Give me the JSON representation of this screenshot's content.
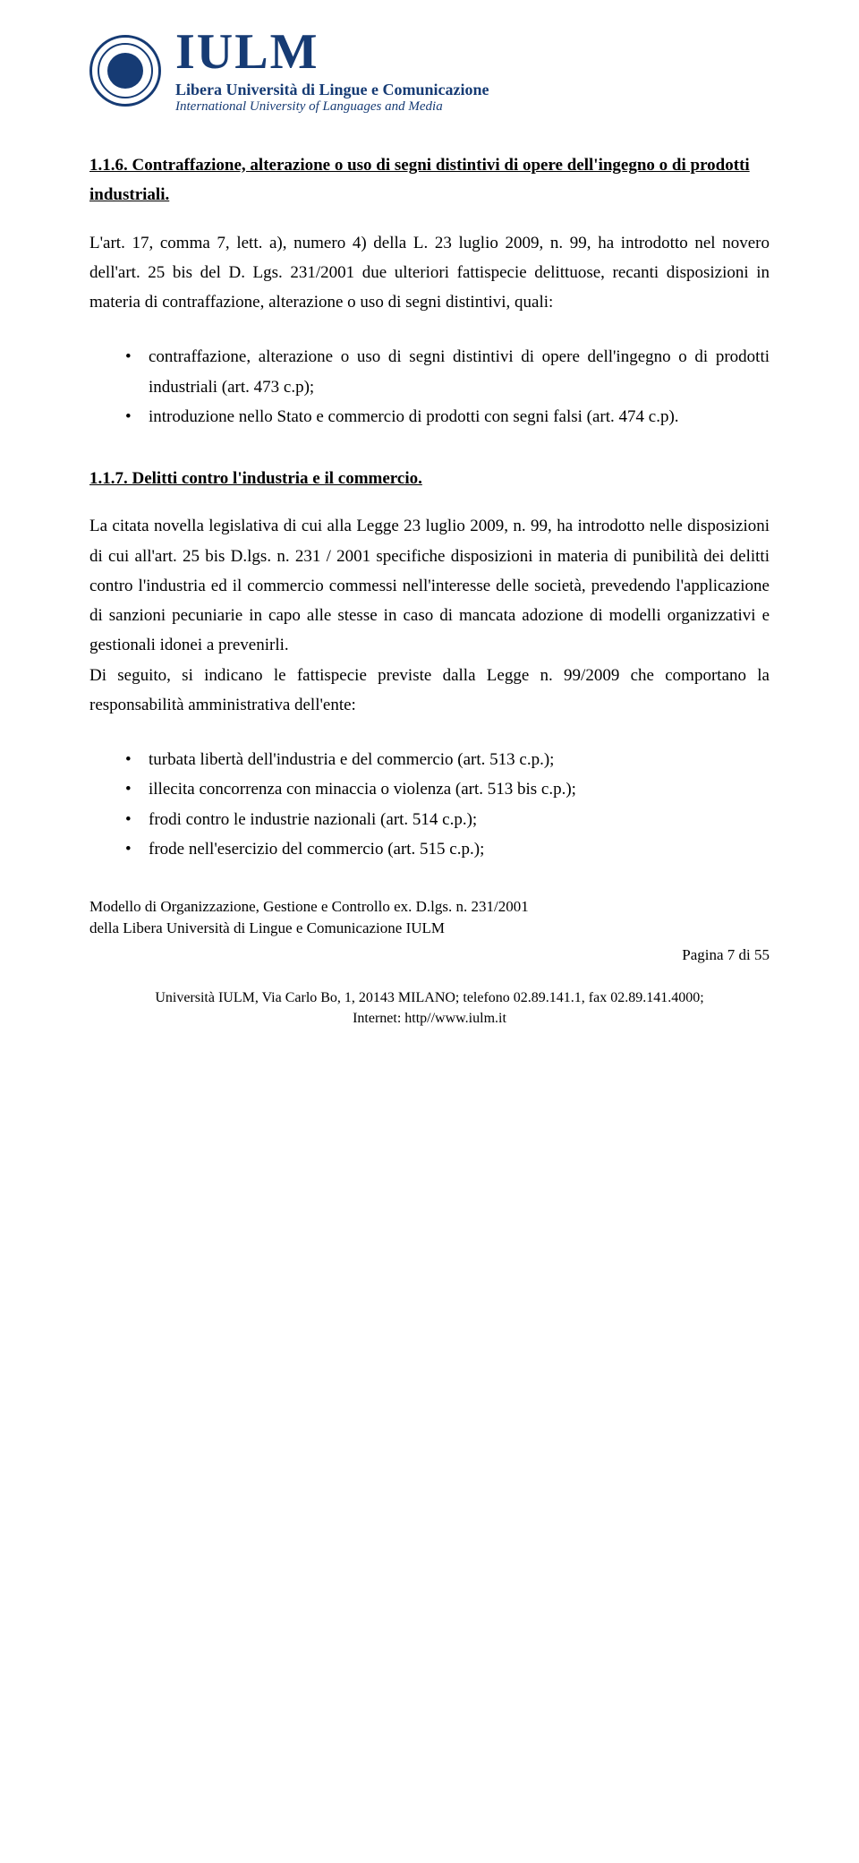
{
  "logo": {
    "main": "IULM",
    "sub1": "Libera Università di Lingue e Comunicazione",
    "sub2": "International University of Languages and Media"
  },
  "sections": {
    "h1": "1.1.6.  Contraffazione, alterazione o uso di segni distintivi di opere dell'ingegno o di prodotti industriali.",
    "p1": "L'art. 17, comma 7, lett. a), numero 4) della L. 23 luglio 2009, n. 99, ha introdotto nel novero dell'art. 25 bis del D. Lgs. 231/2001 due ulteriori fattispecie delittuose, recanti disposizioni in materia di contraffazione, alterazione o uso di segni distintivi, quali:",
    "list1": [
      "contraffazione, alterazione o uso di segni distintivi di opere dell'ingegno o di prodotti industriali  (art. 473 c.p);",
      "introduzione nello Stato e commercio di prodotti con segni falsi (art. 474 c.p)."
    ],
    "h2": "1.1.7.  Delitti contro l'industria e il commercio.",
    "p2": "La citata novella legislativa di cui alla Legge 23 luglio 2009, n. 99, ha introdotto nelle disposizioni di cui all'art. 25 bis D.lgs. n. 231 / 2001 specifiche disposizioni in materia di punibilità dei delitti contro l'industria ed il commercio commessi nell'interesse delle società, prevedendo l'applicazione di sanzioni pecuniarie in capo alle stesse in caso di mancata adozione di modelli organizzativi e gestionali idonei a prevenirli.",
    "p3": "Di seguito, si indicano le fattispecie previste dalla Legge n. 99/2009 che comportano la responsabilità  amministrativa dell'ente:",
    "list2": [
      "turbata libertà  dell'industria e del commercio (art. 513 c.p.);",
      "illecita concorrenza con minaccia o violenza (art. 513 bis c.p.);",
      "frodi contro le industrie nazionali (art. 514 c.p.);",
      "frode nell'esercizio del commercio (art. 515 c.p.);"
    ]
  },
  "footer": {
    "line1": "Modello di Organizzazione, Gestione e Controllo ex. D.lgs. n. 231/2001",
    "line2": "della Libera Università di Lingue e Comunicazione IULM",
    "page": "Pagina 7 di 55",
    "addr1": "Università IULM, Via Carlo Bo, 1, 20143 MILANO; telefono 02.89.141.1, fax 02.89.141.4000;",
    "addr2": "Internet: http//www.iulm.it"
  }
}
